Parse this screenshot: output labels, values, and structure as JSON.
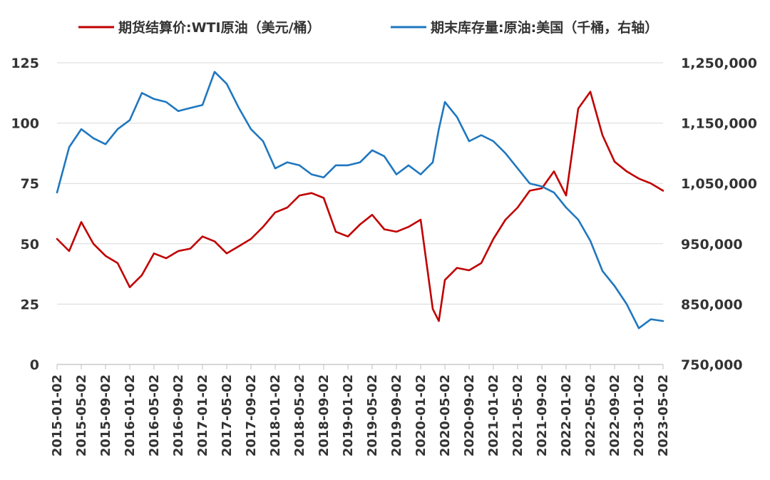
{
  "chart_data": {
    "type": "line",
    "legend": {
      "placement": "top",
      "items": [
        {
          "label": "期货结算价:WTI原油（美元/桶）",
          "color": "#C00000",
          "axis": "left"
        },
        {
          "label": "期末库存量:原油:美国（千桶，右轴）",
          "color": "#1F77BF",
          "axis": "right"
        }
      ]
    },
    "grid": true,
    "left_axis": {
      "ylim": [
        0,
        125
      ],
      "tick_labels": [
        "0",
        "25",
        "50",
        "75",
        "100",
        "125"
      ]
    },
    "right_axis": {
      "ylim": [
        750000,
        1250000
      ],
      "tick_labels": [
        "750,000",
        "850,000",
        "950,000",
        "1,050,000",
        "1,150,000",
        "1,250,000"
      ]
    },
    "x_tick_labels": [
      "2015-01-02",
      "2015-05-02",
      "2015-09-02",
      "2016-01-02",
      "2016-05-02",
      "2016-09-02",
      "2017-01-02",
      "2017-05-02",
      "2017-09-02",
      "2018-01-02",
      "2018-05-02",
      "2018-09-02",
      "2019-01-02",
      "2019-05-02",
      "2019-09-02",
      "2020-01-02",
      "2020-05-02",
      "2020-09-02",
      "2021-01-02",
      "2021-05-02",
      "2021-09-02",
      "2022-01-02",
      "2022-05-02",
      "2022-09-02",
      "2023-01-02",
      "2023-05-02"
    ],
    "x": [
      "2015-01",
      "2015-03",
      "2015-05",
      "2015-07",
      "2015-09",
      "2015-11",
      "2016-01",
      "2016-03",
      "2016-05",
      "2016-07",
      "2016-09",
      "2016-11",
      "2017-01",
      "2017-03",
      "2017-05",
      "2017-07",
      "2017-09",
      "2017-11",
      "2018-01",
      "2018-03",
      "2018-05",
      "2018-07",
      "2018-09",
      "2018-11",
      "2019-01",
      "2019-03",
      "2019-05",
      "2019-07",
      "2019-09",
      "2019-11",
      "2020-01",
      "2020-03",
      "2020-04",
      "2020-05",
      "2020-07",
      "2020-09",
      "2020-11",
      "2021-01",
      "2021-03",
      "2021-05",
      "2021-07",
      "2021-09",
      "2021-11",
      "2022-01",
      "2022-03",
      "2022-05",
      "2022-07",
      "2022-09",
      "2022-11",
      "2023-01",
      "2023-03",
      "2023-05"
    ],
    "series": [
      {
        "name": "期货结算价:WTI原油（美元/桶）",
        "axis": "left",
        "color": "#C00000",
        "values": [
          52,
          47,
          59,
          50,
          45,
          42,
          32,
          37,
          46,
          44,
          47,
          48,
          53,
          51,
          46,
          49,
          52,
          57,
          63,
          65,
          70,
          71,
          69,
          55,
          53,
          58,
          62,
          56,
          55,
          57,
          60,
          23,
          18,
          35,
          40,
          39,
          42,
          52,
          60,
          65,
          72,
          73,
          80,
          70,
          106,
          113,
          95,
          84,
          80,
          77,
          75,
          72
        ]
      },
      {
        "name": "期末库存量:原油:美国（千桶，右轴）",
        "axis": "right",
        "color": "#1F77BF",
        "values": [
          1035000,
          1110000,
          1140000,
          1125000,
          1115000,
          1140000,
          1155000,
          1200000,
          1190000,
          1185000,
          1170000,
          1175000,
          1180000,
          1235000,
          1215000,
          1175000,
          1140000,
          1120000,
          1075000,
          1085000,
          1080000,
          1065000,
          1060000,
          1080000,
          1080000,
          1085000,
          1105000,
          1095000,
          1065000,
          1080000,
          1065000,
          1085000,
          1140000,
          1185000,
          1160000,
          1120000,
          1130000,
          1120000,
          1100000,
          1075000,
          1050000,
          1045000,
          1035000,
          1010000,
          990000,
          955000,
          905000,
          880000,
          850000,
          810000,
          825000,
          822000
        ]
      }
    ]
  }
}
